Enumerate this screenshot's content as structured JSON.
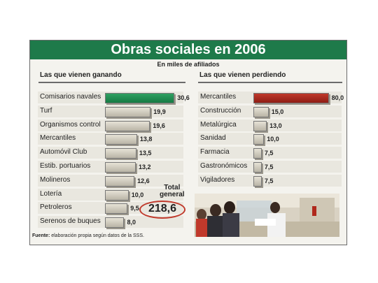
{
  "title": "Obras sociales en 2006",
  "subtitle": "En miles de afiliados",
  "left_header": "Las que vienen ganando",
  "right_header": "Las que vienen perdiendo",
  "total_label_1": "Total",
  "total_label_2": "general",
  "total_value": "218,6",
  "footnote_bold": "Fuente:",
  "footnote_text": " elaboración propia según datos de la SSS.",
  "colors": {
    "green": "#1e7a4a",
    "red": "#b0281c"
  },
  "chart_data": [
    {
      "type": "bar",
      "title": "Las que vienen ganando",
      "categories": [
        "Comisarios navales",
        "Turf",
        "Organismos control",
        "Mercantiles",
        "Automóvil Club",
        "Estib. portuarios",
        "Molineros",
        "Lotería",
        "Petroleros",
        "Serenos de buques"
      ],
      "values": [
        30.6,
        19.9,
        19.6,
        13.8,
        13.5,
        13.2,
        12.6,
        10.0,
        9.5,
        8.0
      ],
      "labels": [
        "30,6",
        "19,9",
        "19,6",
        "13,8",
        "13,5",
        "13,2",
        "12,6",
        "10,0",
        "9,5",
        "8,0"
      ],
      "highlight_index": 0
    },
    {
      "type": "bar",
      "title": "Las que vienen perdiendo",
      "categories": [
        "Mercantiles",
        "Construcción",
        "Metalúrgica",
        "Sanidad",
        "Farmacia",
        "Gastronómicos",
        "Vigiladores"
      ],
      "values": [
        80.0,
        15.0,
        13.0,
        10.0,
        7.5,
        7.5,
        7.5
      ],
      "labels": [
        "80,0",
        "15,0",
        "13,0",
        "10,0",
        "7,5",
        "7,5",
        "7,5"
      ],
      "highlight_index": 0
    }
  ]
}
